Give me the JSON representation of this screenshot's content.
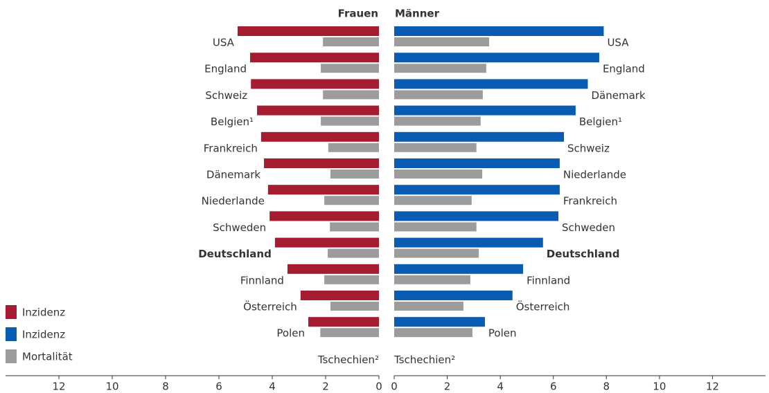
{
  "chart_data": [
    {
      "type": "bar",
      "orientation": "horizontal",
      "title": "Frauen",
      "x_reversed": true,
      "categories": [
        "USA",
        "England",
        "Schweiz",
        "Belgien¹",
        "Frankreich",
        "Dänemark",
        "Niederlande",
        "Schweden",
        "Deutschland",
        "Finnland",
        "Österreich",
        "Polen",
        "Tschechien²"
      ],
      "bold_categories": [
        "Deutschland"
      ],
      "series": [
        {
          "name": "Inzidenz",
          "color": "#a51c30",
          "values": [
            5.3,
            4.83,
            4.8,
            4.57,
            4.42,
            4.31,
            4.16,
            4.1,
            3.9,
            3.43,
            2.94,
            2.65,
            null
          ]
        },
        {
          "name": "Mortalität",
          "color": "#9c9c9c",
          "values": [
            2.1,
            2.18,
            2.1,
            2.18,
            1.9,
            1.82,
            2.05,
            1.84,
            1.92,
            2.05,
            1.82,
            2.2,
            null
          ]
        }
      ],
      "xlim": [
        0,
        14
      ],
      "xticks": [
        0,
        2,
        4,
        6,
        8,
        10,
        12
      ]
    },
    {
      "type": "bar",
      "orientation": "horizontal",
      "title": "Männer",
      "x_reversed": false,
      "categories": [
        "USA",
        "England",
        "Dänemark",
        "Belgien¹",
        "Schweiz",
        "Niederlande",
        "Frankreich",
        "Schweden",
        "Deutschland",
        "Finnland",
        "Österreich",
        "Polen",
        "Tschechien²"
      ],
      "bold_categories": [
        "Deutschland"
      ],
      "series": [
        {
          "name": "Inzidenz",
          "color": "#0a5cb3",
          "values": [
            7.9,
            7.73,
            7.3,
            6.84,
            6.4,
            6.24,
            6.24,
            6.19,
            5.61,
            4.86,
            4.46,
            3.42,
            null
          ]
        },
        {
          "name": "Mortalität",
          "color": "#9c9c9c",
          "values": [
            3.58,
            3.47,
            3.34,
            3.26,
            3.1,
            3.32,
            2.92,
            3.1,
            3.19,
            2.87,
            2.61,
            2.95,
            null
          ]
        }
      ],
      "xlim": [
        0,
        14
      ],
      "xticks": [
        0,
        2,
        4,
        6,
        8,
        10,
        12
      ]
    }
  ]
}
